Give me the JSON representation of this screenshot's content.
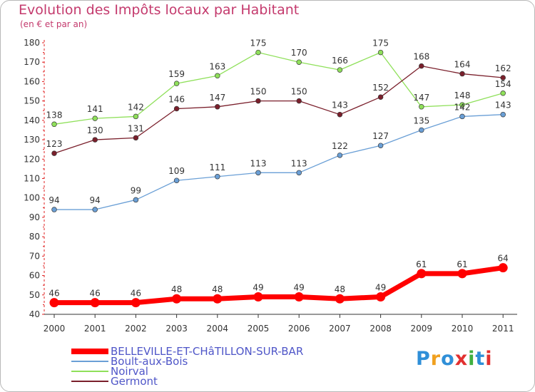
{
  "header": {
    "title": "Evolution des Impôts locaux par Habitant",
    "subtitle": "(en € et par an)"
  },
  "logo": {
    "text": "Proxiti",
    "letters": [
      "P",
      "r",
      "o",
      "x",
      "i",
      "t",
      "i"
    ],
    "colors": [
      "#2f8fd8",
      "#f0a020",
      "#2f8fd8",
      "#e23030",
      "#40b040",
      "#2f8fd8",
      "#e23030"
    ]
  },
  "chart_data": {
    "type": "line",
    "title": "Evolution des Impôts locaux par Habitant",
    "subtitle": "(en € et par an)",
    "xlabel": "",
    "ylabel": "",
    "categories": [
      "2000",
      "2001",
      "2002",
      "2003",
      "2004",
      "2005",
      "2006",
      "2007",
      "2008",
      "2009",
      "2010",
      "2011"
    ],
    "ylim": [
      40,
      180
    ],
    "yticks": [
      40,
      50,
      60,
      70,
      80,
      90,
      100,
      110,
      120,
      130,
      140,
      150,
      160,
      170,
      180
    ],
    "grid": false,
    "legend_position": "bottom-left",
    "series": [
      {
        "name": "BELLEVILLE-ET-CHâTILLON-SUR-BAR",
        "color": "#ff0000",
        "emphasis": true,
        "values": [
          46,
          46,
          46,
          48,
          48,
          49,
          49,
          48,
          49,
          61,
          61,
          64
        ]
      },
      {
        "name": "Boult-aux-Bois",
        "color": "#6a9fd6",
        "emphasis": false,
        "values": [
          94,
          94,
          99,
          109,
          111,
          113,
          113,
          122,
          127,
          135,
          142,
          143
        ]
      },
      {
        "name": "Noirval",
        "color": "#8fe05a",
        "emphasis": false,
        "values": [
          138,
          141,
          142,
          159,
          163,
          175,
          170,
          166,
          175,
          147,
          148,
          154
        ]
      },
      {
        "name": "Germont",
        "color": "#7a1f2b",
        "emphasis": false,
        "values": [
          123,
          130,
          131,
          146,
          147,
          150,
          150,
          143,
          152,
          168,
          164,
          162
        ]
      }
    ]
  }
}
